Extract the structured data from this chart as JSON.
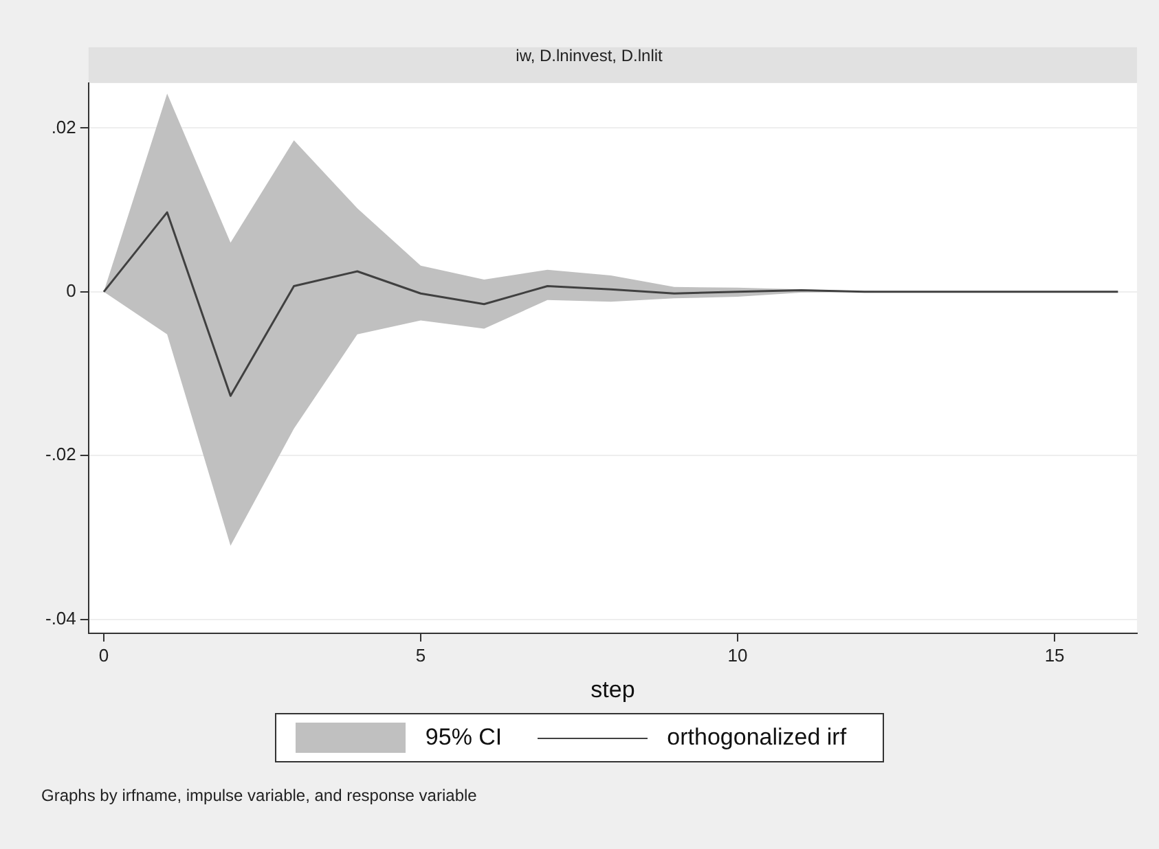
{
  "chart_data": {
    "type": "line",
    "title": "iw, D.lninvest, D.lnlit",
    "xlabel": "step",
    "annotations": [
      "95% CI",
      "Graphs by irfname, impulse variable, and response variable"
    ],
    "x": [
      0,
      1,
      2,
      3,
      4,
      5,
      6,
      7,
      8,
      9,
      10,
      11,
      12,
      13,
      14,
      15,
      16
    ],
    "series": [
      {
        "name": "orthogonalized irf",
        "color": "#404040",
        "values": [
          0,
          0.0097,
          -0.0127,
          0.0007,
          0.0025,
          -0.0002,
          -0.0015,
          0.0007,
          0.0003,
          -0.0002,
          0,
          0.0002,
          0,
          0,
          0,
          0,
          0
        ],
        "lower": [
          0,
          -0.0052,
          -0.031,
          -0.0167,
          -0.0052,
          -0.0035,
          -0.0045,
          -0.001,
          -0.0012,
          -0.0008,
          -0.0006,
          -0.0001,
          0,
          0,
          0,
          0,
          0
        ],
        "upper": [
          0,
          0.0242,
          0.006,
          0.0185,
          0.0102,
          0.0032,
          0.0015,
          0.0027,
          0.002,
          0.0006,
          0.0005,
          0.0003,
          0.0001,
          0,
          0,
          0,
          0
        ]
      }
    ],
    "xlim": [
      -0.24,
      16.3
    ],
    "xticks": [
      0,
      5,
      10,
      15
    ],
    "ylim": [
      -0.0417,
      0.0255
    ],
    "yticks": [
      {
        "value": 0.02,
        "label": ".02"
      },
      0,
      {
        "value": -0.02,
        "label": "-.02"
      },
      {
        "value": -0.04,
        "label": "-.04"
      }
    ],
    "grid": "y",
    "legend": "bottom"
  }
}
